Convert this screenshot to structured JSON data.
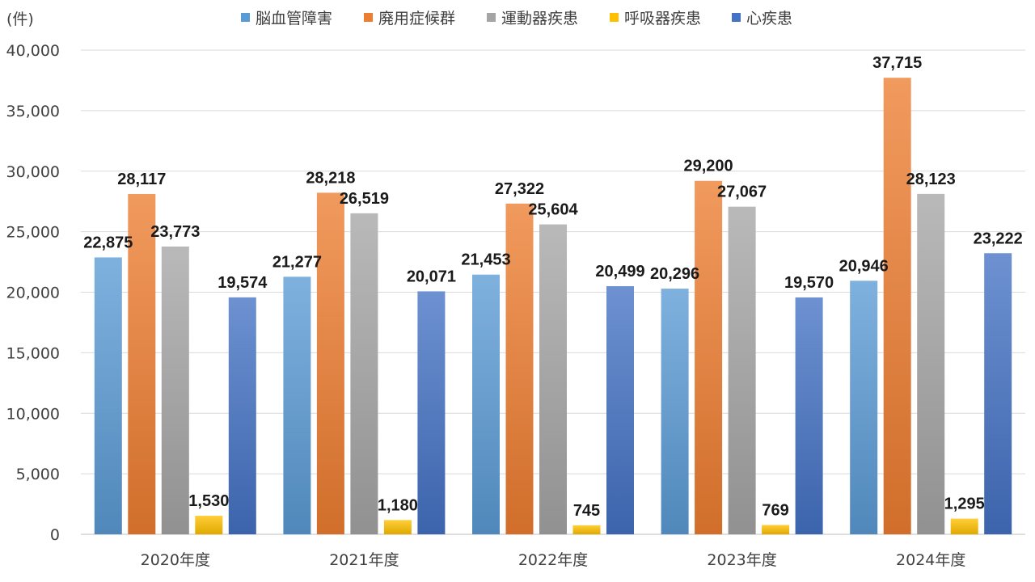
{
  "chart_data": {
    "type": "bar",
    "unit_label": "(件)",
    "categories": [
      "2020年度",
      "2021年度",
      "2022年度",
      "2023年度",
      "2024年度"
    ],
    "series": [
      {
        "name": "脳血管障害",
        "color": "#5b9bd5",
        "values": [
          22875,
          21277,
          21453,
          20296,
          20946
        ]
      },
      {
        "name": "廃用症候群",
        "color": "#ed7d31",
        "values": [
          28117,
          28218,
          27322,
          29200,
          37715
        ]
      },
      {
        "name": "運動器疾患",
        "color": "#a5a5a5",
        "values": [
          23773,
          26519,
          25604,
          27067,
          28123
        ]
      },
      {
        "name": "呼吸器疾患",
        "color": "#ffc000",
        "values": [
          1530,
          1180,
          745,
          769,
          1295
        ]
      },
      {
        "name": "心疾患",
        "color": "#4472c4",
        "values": [
          19574,
          20071,
          20499,
          19570,
          23222
        ]
      }
    ],
    "ylim": [
      0,
      40000
    ],
    "yticks": [
      0,
      5000,
      10000,
      15000,
      20000,
      25000,
      30000,
      35000,
      40000
    ],
    "ytick_labels": [
      "0",
      "5,000",
      "10,000",
      "15,000",
      "20,000",
      "25,000",
      "30,000",
      "35,000",
      "40,000"
    ],
    "grid": true,
    "legend_position": "top",
    "data_labels": true
  }
}
